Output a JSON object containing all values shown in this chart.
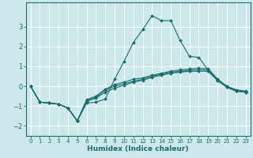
{
  "title": "",
  "xlabel": "Humidex (Indice chaleur)",
  "ylabel": "",
  "background_color": "#cce8ea",
  "grid_color": "#ffffff",
  "line_color": "#1a6b6b",
  "xlim": [
    -0.5,
    23.5
  ],
  "ylim": [
    -2.5,
    4.2
  ],
  "yticks": [
    -2,
    -1,
    0,
    1,
    2,
    3
  ],
  "xticks": [
    0,
    1,
    2,
    3,
    4,
    5,
    6,
    7,
    8,
    9,
    10,
    11,
    12,
    13,
    14,
    15,
    16,
    17,
    18,
    19,
    20,
    21,
    22,
    23
  ],
  "series": [
    {
      "x": [
        0,
        1,
        2,
        3,
        4,
        5,
        6,
        7,
        8,
        9,
        10,
        11,
        12,
        13,
        14,
        15,
        16,
        17,
        18,
        19,
        20,
        21,
        22,
        23
      ],
      "y": [
        0.0,
        -0.8,
        -0.85,
        -0.9,
        -1.1,
        -1.75,
        -0.85,
        -0.8,
        -0.65,
        0.35,
        1.25,
        2.2,
        2.85,
        3.55,
        3.3,
        3.3,
        2.3,
        1.5,
        1.45,
        0.8,
        0.3,
        -0.05,
        -0.25,
        -0.3
      ]
    },
    {
      "x": [
        0,
        1,
        2,
        3,
        4,
        5,
        6,
        7,
        8,
        9,
        10,
        11,
        12,
        13,
        14,
        15,
        16,
        17,
        18,
        19,
        20,
        21,
        22,
        23
      ],
      "y": [
        0.0,
        -0.8,
        -0.85,
        -0.9,
        -1.1,
        -1.75,
        -0.75,
        -0.6,
        -0.3,
        -0.1,
        0.05,
        0.2,
        0.3,
        0.45,
        0.55,
        0.65,
        0.7,
        0.75,
        0.75,
        0.75,
        0.28,
        -0.05,
        -0.25,
        -0.3
      ]
    },
    {
      "x": [
        0,
        1,
        2,
        3,
        4,
        5,
        6,
        7,
        8,
        9,
        10,
        11,
        12,
        13,
        14,
        15,
        16,
        17,
        18,
        19,
        20,
        21,
        22,
        23
      ],
      "y": [
        0.0,
        -0.8,
        -0.85,
        -0.9,
        -1.1,
        -1.75,
        -0.72,
        -0.55,
        -0.2,
        0.0,
        0.12,
        0.25,
        0.35,
        0.5,
        0.6,
        0.7,
        0.75,
        0.8,
        0.82,
        0.82,
        0.32,
        -0.02,
        -0.22,
        -0.28
      ]
    },
    {
      "x": [
        0,
        1,
        2,
        3,
        4,
        5,
        6,
        7,
        8,
        9,
        10,
        11,
        12,
        13,
        14,
        15,
        16,
        17,
        18,
        19,
        20,
        21,
        22,
        23
      ],
      "y": [
        0.0,
        -0.8,
        -0.85,
        -0.9,
        -1.1,
        -1.75,
        -0.68,
        -0.5,
        -0.15,
        0.08,
        0.2,
        0.35,
        0.42,
        0.55,
        0.65,
        0.75,
        0.82,
        0.87,
        0.9,
        0.88,
        0.36,
        0.0,
        -0.18,
        -0.25
      ]
    }
  ]
}
